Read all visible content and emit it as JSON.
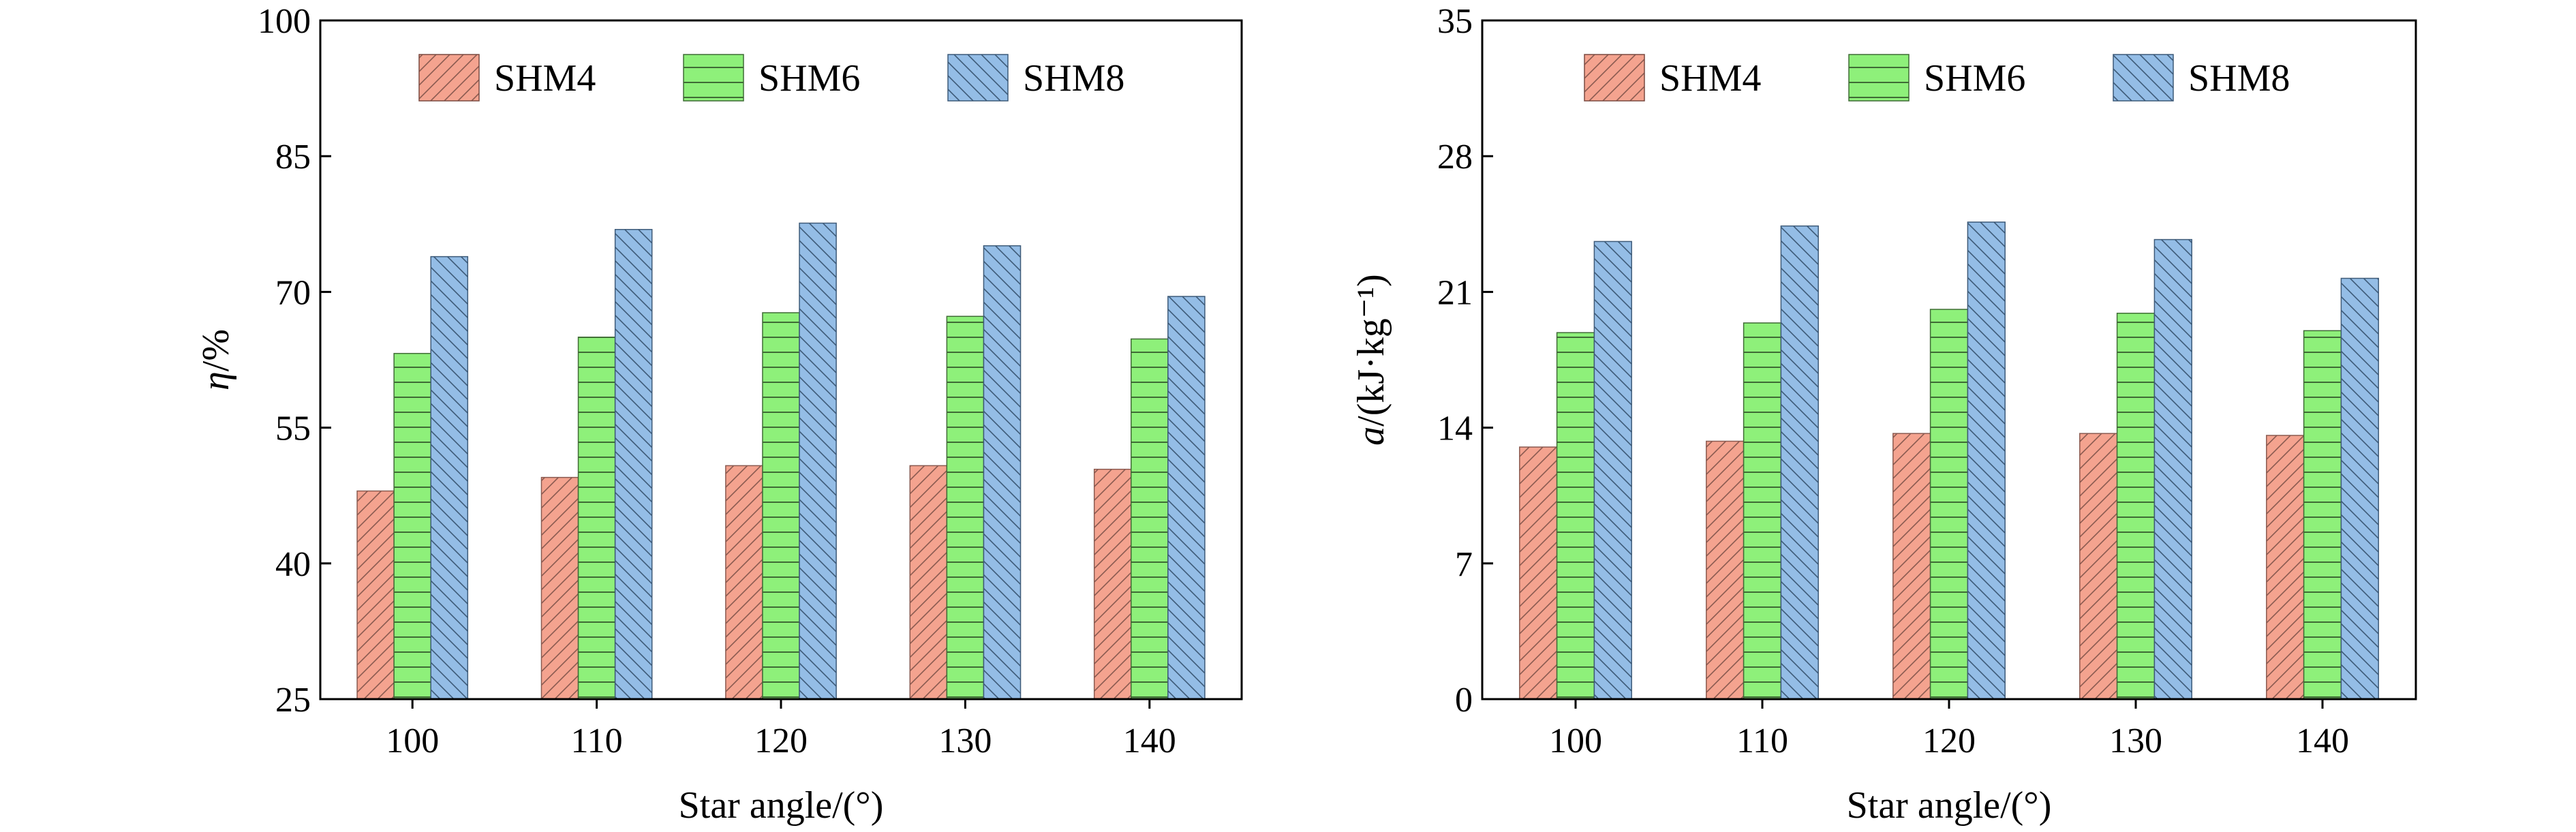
{
  "figure": {
    "charts": [
      {
        "id": "left",
        "type": "bar",
        "xlabel": "Star angle/(°)",
        "ylabel_italic": "η",
        "ylabel_rest": "/%",
        "ylim": [
          25,
          100
        ],
        "yticks": [
          25,
          40,
          55,
          70,
          85,
          100
        ],
        "categories": [
          "100",
          "110",
          "120",
          "130",
          "140"
        ]
      },
      {
        "id": "right",
        "type": "bar",
        "xlabel": "Star angle/(°)",
        "ylabel_italic": "a",
        "ylabel_rest": "/(kJ·kg⁻¹)",
        "ylim": [
          0,
          35
        ],
        "yticks": [
          0,
          7,
          14,
          21,
          28,
          35
        ],
        "categories": [
          "100",
          "110",
          "120",
          "130",
          "140"
        ]
      }
    ]
  },
  "chart_data": [
    {
      "type": "bar",
      "title": "",
      "xlabel": "Star angle/(°)",
      "ylabel": "η/%",
      "categories": [
        "100",
        "110",
        "120",
        "130",
        "140"
      ],
      "ylim": [
        25,
        100
      ],
      "legend": "top",
      "grid": false,
      "series": [
        {
          "name": "SHM4",
          "values": [
            48.0,
            49.5,
            50.8,
            50.8,
            50.4
          ],
          "color": "#f4a38f",
          "pattern": "diagonal"
        },
        {
          "name": "SHM6",
          "values": [
            63.2,
            65.0,
            67.7,
            67.3,
            64.8
          ],
          "color": "#8ef07a",
          "pattern": "horizontal"
        },
        {
          "name": "SHM8",
          "values": [
            73.9,
            76.9,
            77.6,
            75.1,
            69.5
          ],
          "color": "#94bde6",
          "pattern": "backdiagonal"
        }
      ]
    },
    {
      "type": "bar",
      "title": "",
      "xlabel": "Star angle/(°)",
      "ylabel": "a/(kJ·kg⁻¹)",
      "categories": [
        "100",
        "110",
        "120",
        "130",
        "140"
      ],
      "ylim": [
        0,
        35
      ],
      "legend": "top",
      "grid": false,
      "series": [
        {
          "name": "SHM4",
          "values": [
            13.0,
            13.3,
            13.7,
            13.7,
            13.6
          ],
          "color": "#f4a38f",
          "pattern": "diagonal"
        },
        {
          "name": "SHM6",
          "values": [
            18.9,
            19.4,
            20.1,
            19.9,
            19.0
          ],
          "color": "#8ef07a",
          "pattern": "horizontal"
        },
        {
          "name": "SHM8",
          "values": [
            23.6,
            24.4,
            24.6,
            23.7,
            21.7
          ],
          "color": "#94bde6",
          "pattern": "backdiagonal"
        }
      ]
    }
  ]
}
